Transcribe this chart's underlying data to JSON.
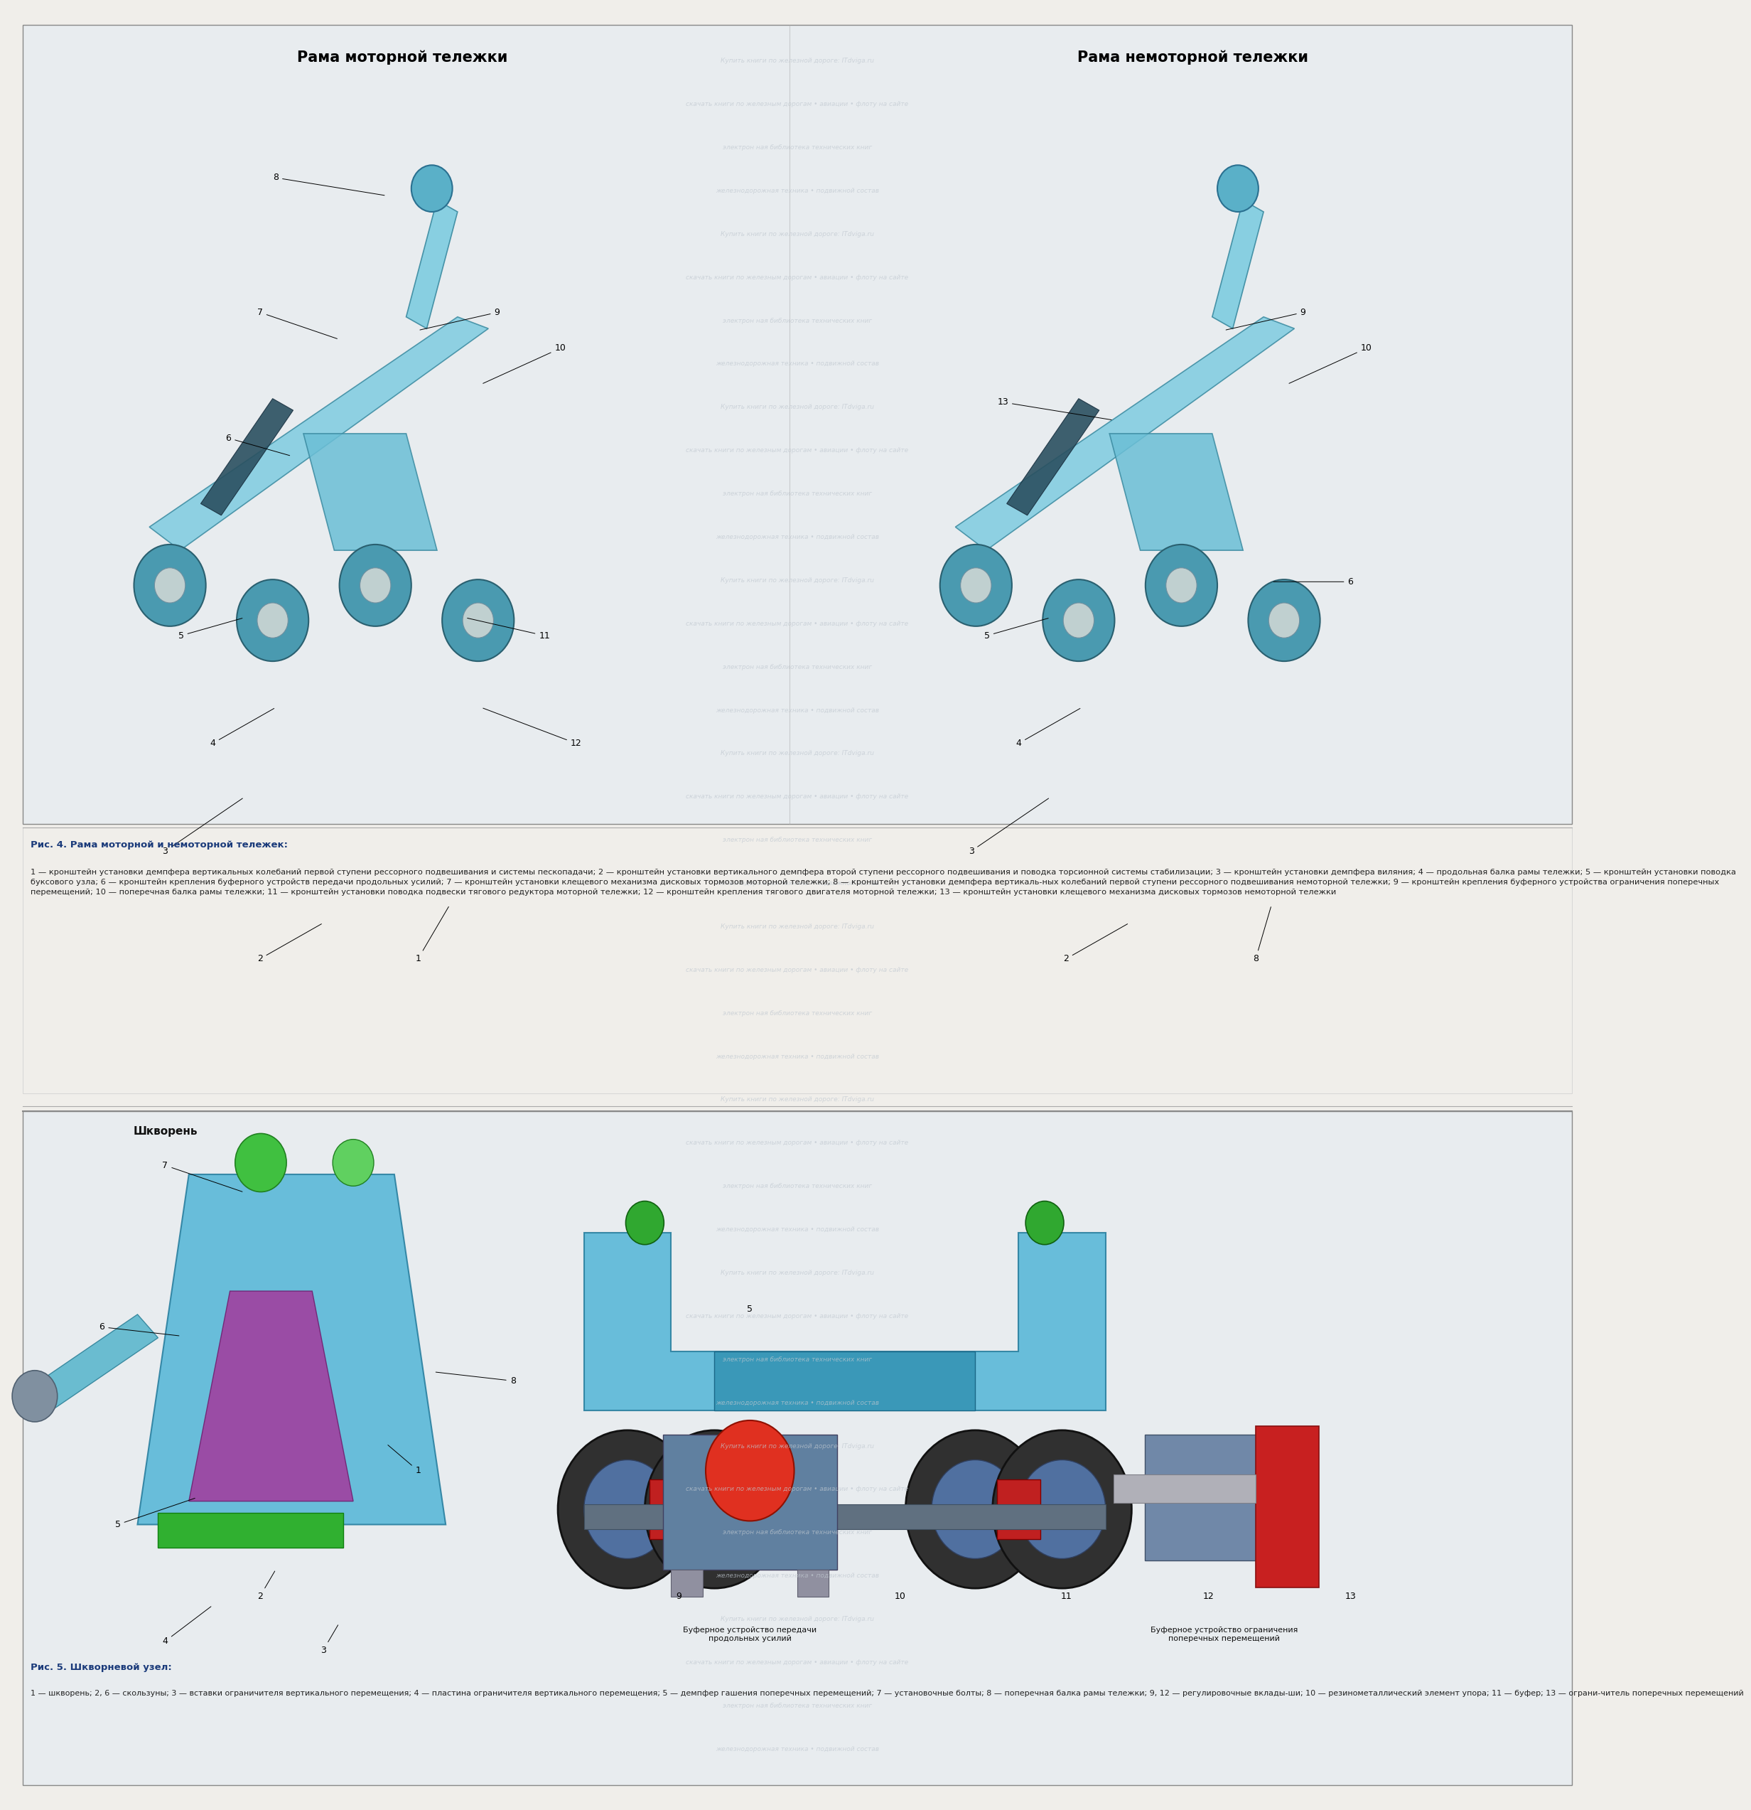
{
  "bg_color": "#d8d8d8",
  "page_bg": "#f0eeea",
  "fig_width": 22.24,
  "fig_height": 25.26,
  "title1": "Рама моторной тележки",
  "title2": "Рама немоторной тележки",
  "fig4_title": "Рис. 4. Рама моторной и немоторной тележек:",
  "fig4_caption": "1 — кронштейн установки демпфера вертикальных колебаний первой ступени рессорного подвешивания и системы пескопадачи; 2 — кронштейн установки вертикального демпфера второй ступени рессорного подвешивания и поводка торсионной системы стабилизации; 3 — кронштейн установки демпфера виляния; 4 — продольная балка рамы тележки; 5 — кронштейн установки поводка буксового узла; 6 — кронштейн крепления буферного устройств передачи продольных усилий; 7 — кронштейн установки клещевого механизма дисковых тормозов моторной тележки; 8 — кронштейн установки демпфера вертикаль-ных колебаний первой ступени рессорного подвешивания немоторной тележки; 9 — кронштейн крепления буферного устройства ограничения поперечных перемещений; 10 — поперечная балка рамы тележки; 11 — кронштейн установки поводка подвески тягового редуктора моторной тележки; 12 — кронштейн крепления тягового двигателя моторной тележки; 13 — кронштейн установки клещевого механизма дисковых тормозов немоторной тележки",
  "fig5_title": "Рис. 5. Шкворневой узел:",
  "fig5_caption": "1 — шкворень; 2, 6 — скользуны; 3 — вставки ограничителя вертикального перемещения; 4 — пластина ограничителя вертикального перемещения; 5 — демпфер гашения поперечных перемещений; 7 — установочные болты; 8 — поперечная балка рамы тележки; 9, 12 — регулировочные вклады-ши; 10 — резинометаллический элемент упора; 11 — буфер; 13 — ограни-читель поперечных перемещений",
  "shkvoren_label": "Шкворень",
  "buf_label1": "Буферное устройство передачи\nпродольных усилий",
  "buf_label2": "Буферное устройство ограничения\nпоперечных перемещений",
  "text_color_body": "#222222",
  "text_color_title": "#1a3a7a",
  "text_color_heading": "#000000",
  "watermark_color": "#c0c8d0"
}
